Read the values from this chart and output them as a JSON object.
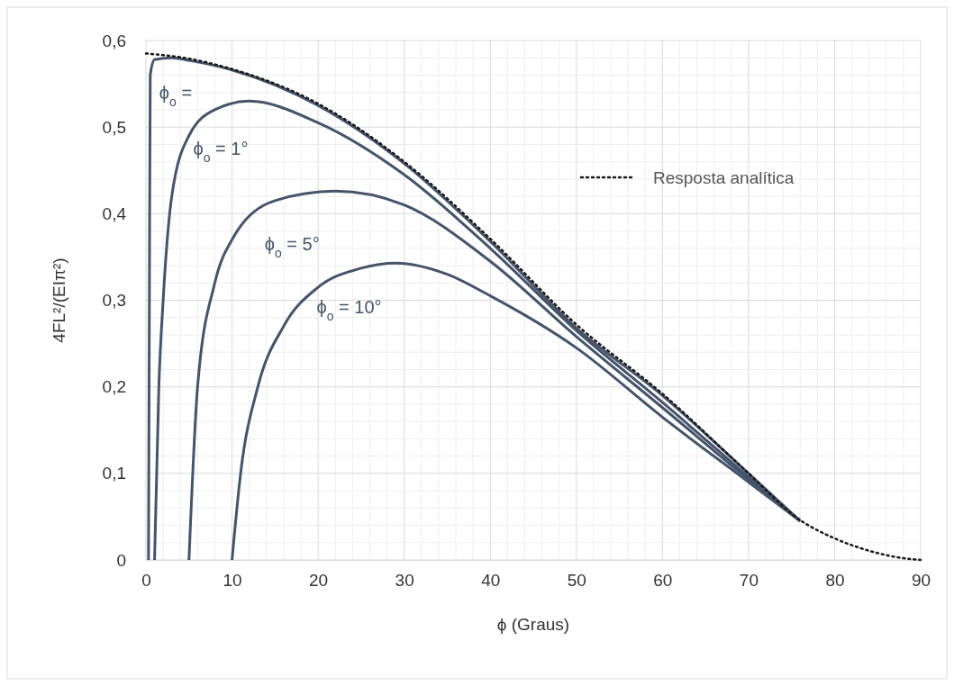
{
  "chart_data": {
    "type": "line",
    "xlabel": "ϕ (Graus)",
    "ylabel": "4FL²/(EIπ²)",
    "xlim": [
      0,
      90
    ],
    "xticks": [
      0,
      10,
      20,
      30,
      40,
      50,
      60,
      70,
      80,
      90
    ],
    "ylim": [
      0,
      0.6
    ],
    "yticks": [
      {
        "value": 0,
        "label": "0"
      },
      {
        "value": 0.1,
        "label": "0,1"
      },
      {
        "value": 0.2,
        "label": "0,2"
      },
      {
        "value": 0.3,
        "label": "0,3"
      },
      {
        "value": 0.4,
        "label": "0,4"
      },
      {
        "value": 0.5,
        "label": "0,5"
      },
      {
        "value": 0.6,
        "label": "0,6"
      }
    ],
    "grid": true,
    "legend": "top right",
    "series": [
      {
        "name": "ϕ$_{o}$ =",
        "color": "#44546a",
        "line_style": "solid",
        "x": [
          0.3,
          0.4,
          0.5,
          1,
          3,
          5,
          10,
          20,
          30,
          40,
          50,
          60,
          70,
          76
        ],
        "values": [
          0,
          0.3,
          0.56,
          0.578,
          0.58,
          0.577,
          0.566,
          0.525,
          0.458,
          0.368,
          0.268,
          0.19,
          0.1,
          0.045
        ]
      },
      {
        "name": "ϕ$_{o}$ = 1°",
        "color": "#44546a",
        "line_style": "solid",
        "x": [
          1,
          1.5,
          2,
          3,
          5,
          8,
          12,
          20,
          30,
          40,
          50,
          60,
          70,
          76
        ],
        "values": [
          0,
          0.2,
          0.3,
          0.42,
          0.49,
          0.52,
          0.53,
          0.505,
          0.445,
          0.36,
          0.265,
          0.182,
          0.096,
          0.045
        ]
      },
      {
        "name": "ϕ$_{o}$ = 5°",
        "color": "#44546a",
        "line_style": "solid",
        "x": [
          5,
          6,
          8,
          10,
          15,
          22,
          30,
          40,
          50,
          60,
          70,
          76
        ],
        "values": [
          0,
          0.2,
          0.32,
          0.37,
          0.415,
          0.426,
          0.41,
          0.345,
          0.258,
          0.176,
          0.093,
          0.045
        ]
      },
      {
        "name": "ϕ$_{o}$ = 10°",
        "color": "#44546a",
        "line_style": "solid",
        "x": [
          10,
          11,
          13,
          16,
          20,
          25,
          29,
          35,
          40,
          50,
          60,
          70,
          76
        ],
        "values": [
          0,
          0.1,
          0.2,
          0.27,
          0.315,
          0.337,
          0.343,
          0.33,
          0.305,
          0.245,
          0.165,
          0.09,
          0.045
        ]
      },
      {
        "name": "Resposta analítica",
        "color": "#1a1a1a",
        "line_style": "dotted",
        "x": [
          0,
          5,
          10,
          20,
          30,
          40,
          50,
          60,
          70,
          76,
          80,
          85,
          88,
          90
        ],
        "values": [
          0.585,
          0.579,
          0.567,
          0.527,
          0.46,
          0.371,
          0.272,
          0.192,
          0.1,
          0.046,
          0.025,
          0.008,
          0.002,
          0
        ]
      }
    ]
  }
}
